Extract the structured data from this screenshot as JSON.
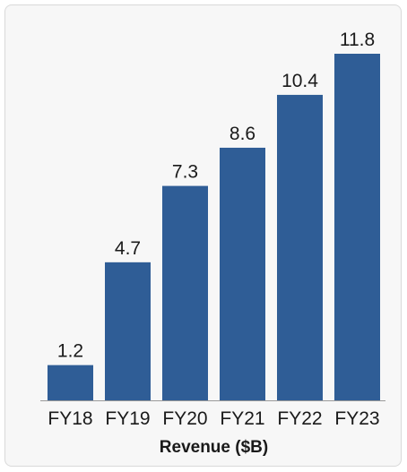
{
  "chart_data": {
    "type": "bar",
    "categories": [
      "FY18",
      "FY19",
      "FY20",
      "FY21",
      "FY22",
      "FY23"
    ],
    "values": [
      1.2,
      4.7,
      7.3,
      8.6,
      10.4,
      11.8
    ],
    "title": "",
    "xlabel": "Revenue ($B)",
    "ylabel": "",
    "ylim": [
      0,
      11.8
    ],
    "grid": false,
    "legend": "none",
    "bar_color": "#2f5d96",
    "data_labels": true
  }
}
